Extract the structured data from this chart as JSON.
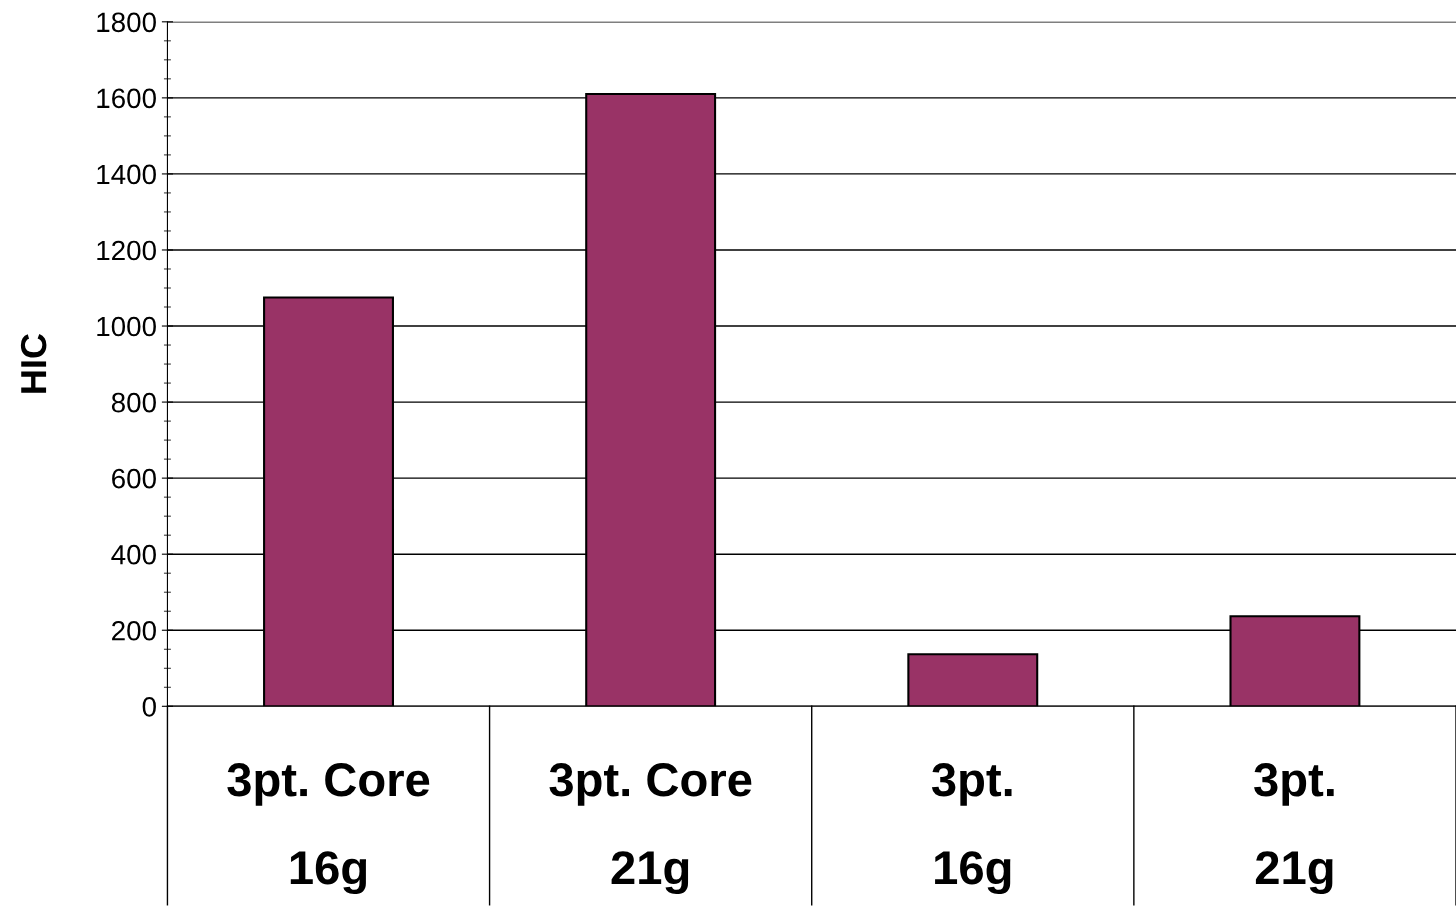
{
  "chart_data": {
    "type": "bar",
    "ylabel": "HIC",
    "categories": [
      "3pt. Core\n\n16g",
      "3pt. Core\n\n21g",
      "3pt.\n\n16g",
      "3pt.\n\n21g"
    ],
    "values": [
      1075,
      1610,
      137,
      237
    ],
    "color": "#993366",
    "ylim": [
      0,
      1800
    ],
    "yticks": [
      0,
      200,
      400,
      600,
      800,
      1000,
      1200,
      1400,
      1600,
      1800
    ],
    "grid": "y"
  }
}
